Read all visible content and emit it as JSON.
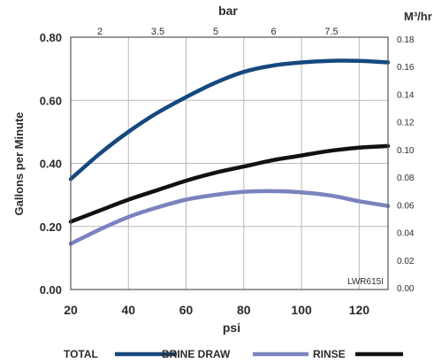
{
  "chart_data": {
    "type": "line",
    "title": "",
    "xlabel": "psi",
    "x2label": "bar",
    "ylabel": "Gallons per Minute",
    "y2label": "M³/hr",
    "xlim": [
      20,
      130
    ],
    "ylim": [
      0,
      0.8
    ],
    "y2lim": [
      0,
      0.18
    ],
    "x_ticks": [
      20,
      40,
      60,
      80,
      100,
      120
    ],
    "x_tick_labels": [
      "20",
      "40",
      "60",
      "80",
      "100",
      "120"
    ],
    "x2_ticks": [
      "2",
      "3.5",
      "5",
      "6",
      "7.5"
    ],
    "y_ticks": [
      0,
      0.2,
      0.4,
      0.6,
      0.8
    ],
    "y_tick_labels": [
      "0.00",
      "0.20",
      "0.40",
      "0.60",
      "0.80"
    ],
    "y2_tick_labels": [
      "0.00",
      "0.02",
      "0.04",
      "0.06",
      "0.08",
      "0.10",
      "0.12",
      "0.14",
      "0.16",
      "0.18"
    ],
    "grid": true,
    "legend_position": "bottom",
    "annotation": "LWR615I",
    "series": [
      {
        "name": "TOTAL",
        "color": "#16487f",
        "x": [
          20,
          30,
          40,
          50,
          60,
          70,
          80,
          90,
          100,
          110,
          120,
          130
        ],
        "y": [
          0.35,
          0.43,
          0.5,
          0.56,
          0.61,
          0.655,
          0.69,
          0.71,
          0.72,
          0.725,
          0.725,
          0.72
        ]
      },
      {
        "name": "BRINE DRAW",
        "color": "#7a83bd",
        "x": [
          20,
          30,
          40,
          50,
          60,
          70,
          80,
          90,
          100,
          110,
          120,
          130
        ],
        "y": [
          0.145,
          0.19,
          0.23,
          0.26,
          0.285,
          0.3,
          0.31,
          0.312,
          0.308,
          0.298,
          0.28,
          0.265
        ]
      },
      {
        "name": "RINSE",
        "color": "#111111",
        "x": [
          20,
          30,
          40,
          50,
          60,
          70,
          80,
          90,
          100,
          110,
          120,
          130
        ],
        "y": [
          0.215,
          0.25,
          0.285,
          0.315,
          0.345,
          0.37,
          0.39,
          0.41,
          0.425,
          0.44,
          0.45,
          0.455
        ]
      }
    ]
  }
}
